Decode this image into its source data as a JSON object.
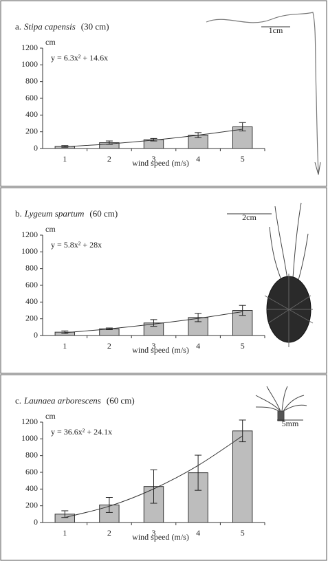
{
  "chart_data": [
    {
      "type": "bar",
      "panel": "a.",
      "species": "Stipa capensis",
      "height": "(30 cm)",
      "y_unit": "cm",
      "xlabel": "wind speed (m/s)",
      "equation": "y = 6.3x² + 14.6x",
      "scale_label": "1cm",
      "categories": [
        "1",
        "2",
        "3",
        "4",
        "5"
      ],
      "values": [
        25,
        70,
        105,
        160,
        260
      ],
      "errors": [
        10,
        20,
        15,
        30,
        50
      ],
      "fit": [
        20.9,
        54.4,
        100.5,
        159.2,
        230.5
      ],
      "color": "#bdbdbd",
      "ylim": [
        0,
        1200
      ],
      "yticks": [
        0,
        200,
        400,
        600,
        800,
        1000,
        1200
      ]
    },
    {
      "type": "bar",
      "panel": "b.",
      "species": "Lygeum spartum",
      "height": "(60 cm)",
      "y_unit": "cm",
      "xlabel": "wind speed (m/s)",
      "equation": "y = 5.8x² + 28x",
      "scale_label": "2cm",
      "categories": [
        "1",
        "2",
        "3",
        "4",
        "5"
      ],
      "values": [
        40,
        80,
        150,
        215,
        300
      ],
      "errors": [
        15,
        10,
        40,
        50,
        60
      ],
      "fit": [
        33.8,
        79.2,
        136.2,
        204.8,
        285
      ],
      "color": "#bdbdbd",
      "ylim": [
        0,
        1200
      ],
      "yticks": [
        0,
        200,
        400,
        600,
        800,
        1000,
        1200
      ]
    },
    {
      "type": "bar",
      "panel": "c.",
      "species": "Launaea arborescens",
      "height": "(60 cm)",
      "y_unit": "cm",
      "xlabel": "wind speed (m/s)",
      "equation": "y = 36.6x² + 24.1x",
      "scale_label": "5mm",
      "categories": [
        "1",
        "2",
        "3",
        "4",
        "5"
      ],
      "values": [
        100,
        210,
        430,
        595,
        1095
      ],
      "errors": [
        40,
        90,
        200,
        210,
        130
      ],
      "fit": [
        60.7,
        194.6,
        401.7,
        682,
        1035.5
      ],
      "color": "#bdbdbd",
      "ylim": [
        0,
        1200
      ],
      "yticks": [
        0,
        200,
        400,
        600,
        800,
        1000,
        1200
      ]
    }
  ]
}
